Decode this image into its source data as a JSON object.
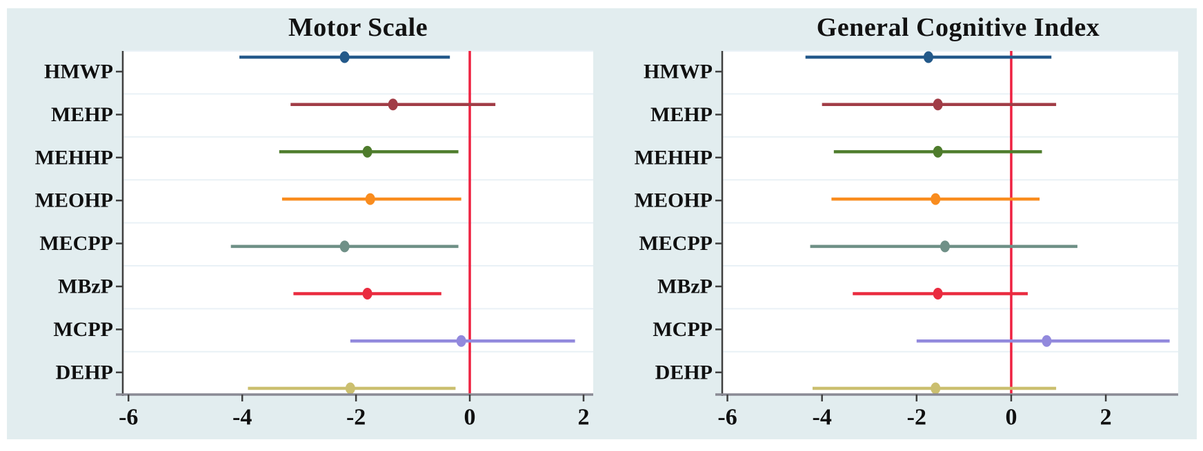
{
  "figure": {
    "canvas_bg": "#e2edef",
    "plot_bg": "#ffffff",
    "grid_color": "#e9f1f6",
    "y_axis_color": "#3f3f3f",
    "x_axis_color": "#8a8a94",
    "tick_color": "#3f3f3f",
    "text_color": "#101010",
    "ref_line_color": "#ee2140"
  },
  "chart_data": [
    {
      "type": "scatter",
      "subtype": "forest-plot-ci",
      "title": "Motor Scale",
      "xlabel": "",
      "ylabel": "",
      "xlim": [
        -6.1,
        2.17
      ],
      "xticks": [
        -6,
        -4,
        -2,
        0,
        2
      ],
      "xtick_labels": [
        "-6",
        "-4",
        "-2",
        "0",
        "2"
      ],
      "ref_line_x": 0,
      "grid": "horizontal-band-lines",
      "legend": "none",
      "categories": [
        "HMWP",
        "MEHP",
        "MEHHP",
        "MEOHP",
        "MECPP",
        "MBzP",
        "MCPP",
        "DEHP"
      ],
      "series": [
        {
          "label": "HMWP",
          "estimate": -2.2,
          "ci_low": -4.05,
          "ci_high": -0.35,
          "color": "#24598a"
        },
        {
          "label": "MEHP",
          "estimate": -1.35,
          "ci_low": -3.15,
          "ci_high": 0.45,
          "color": "#a13c46"
        },
        {
          "label": "MEHHP",
          "estimate": -1.8,
          "ci_low": -3.35,
          "ci_high": -0.2,
          "color": "#4e7c2c"
        },
        {
          "label": "MEOHP",
          "estimate": -1.75,
          "ci_low": -3.3,
          "ci_high": -0.15,
          "color": "#f98c1e"
        },
        {
          "label": "MECPP",
          "estimate": -2.2,
          "ci_low": -4.2,
          "ci_high": -0.2,
          "color": "#6f9087"
        },
        {
          "label": "MBzP",
          "estimate": -1.8,
          "ci_low": -3.1,
          "ci_high": -0.5,
          "color": "#ea2b3f"
        },
        {
          "label": "MCPP",
          "estimate": -0.15,
          "ci_low": -2.1,
          "ci_high": 1.85,
          "color": "#9289dd"
        },
        {
          "label": "DEHP",
          "estimate": -2.1,
          "ci_low": -3.9,
          "ci_high": -0.25,
          "color": "#cbbf6f"
        }
      ]
    },
    {
      "type": "scatter",
      "subtype": "forest-plot-ci",
      "title": "General Cognitive Index",
      "xlabel": "",
      "ylabel": "",
      "xlim": [
        -6.11,
        3.53
      ],
      "xticks": [
        -6,
        -4,
        -2,
        0,
        2
      ],
      "xtick_labels": [
        "-6",
        "-4",
        "-2",
        "0",
        "2"
      ],
      "ref_line_x": 0,
      "grid": "horizontal-band-lines",
      "legend": "none",
      "categories": [
        "HMWP",
        "MEHP",
        "MEHHP",
        "MEOHP",
        "MECPP",
        "MBzP",
        "MCPP",
        "DEHP"
      ],
      "series": [
        {
          "label": "HMWP",
          "estimate": -1.75,
          "ci_low": -4.35,
          "ci_high": 0.85,
          "color": "#24598a"
        },
        {
          "label": "MEHP",
          "estimate": -1.55,
          "ci_low": -4.0,
          "ci_high": 0.95,
          "color": "#a13c46"
        },
        {
          "label": "MEHHP",
          "estimate": -1.55,
          "ci_low": -3.75,
          "ci_high": 0.65,
          "color": "#4e7c2c"
        },
        {
          "label": "MEOHP",
          "estimate": -1.6,
          "ci_low": -3.8,
          "ci_high": 0.6,
          "color": "#f98c1e"
        },
        {
          "label": "MECPP",
          "estimate": -1.4,
          "ci_low": -4.25,
          "ci_high": 1.4,
          "color": "#6f9087"
        },
        {
          "label": "MBzP",
          "estimate": -1.55,
          "ci_low": -3.35,
          "ci_high": 0.35,
          "color": "#ea2b3f"
        },
        {
          "label": "MCPP",
          "estimate": 0.75,
          "ci_low": -2.0,
          "ci_high": 3.35,
          "color": "#9289dd"
        },
        {
          "label": "DEHP",
          "estimate": -1.6,
          "ci_low": -4.2,
          "ci_high": 0.95,
          "color": "#cbbf6f"
        }
      ]
    }
  ]
}
